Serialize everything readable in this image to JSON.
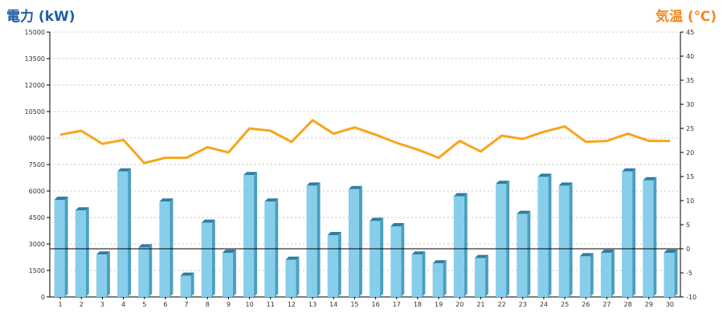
{
  "chart_data": {
    "type": "bar",
    "left_axis_title": "電力 (kW)",
    "right_axis_title": "気温 (℃)",
    "categories": [
      "1",
      "2",
      "3",
      "4",
      "5",
      "6",
      "7",
      "8",
      "9",
      "10",
      "11",
      "12",
      "13",
      "14",
      "15",
      "16",
      "17",
      "18",
      "19",
      "20",
      "21",
      "22",
      "23",
      "24",
      "25",
      "26",
      "27",
      "28",
      "29",
      "30"
    ],
    "series": [
      {
        "type": "bar",
        "axis": "left",
        "values": [
          5500,
          4900,
          2400,
          7100,
          2800,
          5400,
          1200,
          4200,
          2500,
          6900,
          5400,
          2100,
          6300,
          3500,
          6100,
          4300,
          4000,
          2400,
          1900,
          5700,
          2200,
          6400,
          4700,
          6800,
          6300,
          2300,
          2500,
          7100,
          6600,
          2500
        ]
      },
      {
        "type": "line",
        "axis": "right",
        "values": [
          23.7,
          24.5,
          21.8,
          22.6,
          17.8,
          18.9,
          18.9,
          21.1,
          20.0,
          25.0,
          24.5,
          22.2,
          26.7,
          23.9,
          25.2,
          23.7,
          22.0,
          20.6,
          18.9,
          22.4,
          20.2,
          23.5,
          22.8,
          24.3,
          25.4,
          22.2,
          22.4,
          23.9,
          22.4,
          22.4
        ]
      }
    ],
    "left_ticks": [
      "0",
      "1500",
      "3000",
      "4500",
      "6000",
      "7500",
      "9000",
      "10500",
      "12000",
      "13500",
      "15000"
    ],
    "right_ticks": [
      "-10",
      "-5",
      "0",
      "5",
      "10",
      "15",
      "20",
      "25",
      "30",
      "35",
      "40",
      "45"
    ],
    "ylim_left": [
      0,
      15000
    ],
    "ylim_right": [
      -10,
      45
    ],
    "reference_line_right_value": 0,
    "grid": "horizontal-dashed",
    "colors": {
      "bar": "#87ceeb",
      "bar_side": "#4a9fc0",
      "bar_top": "#2f7ea2",
      "line": "#f7a51b",
      "left_title": "#1f5fa8",
      "right_title": "#f08a24"
    }
  }
}
